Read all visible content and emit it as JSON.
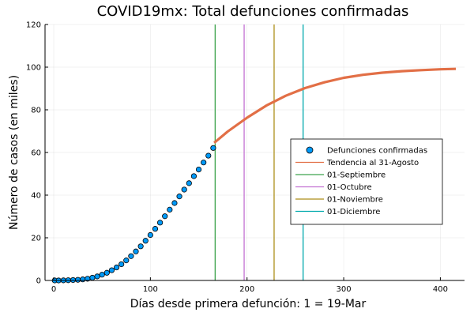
{
  "chart_data": {
    "type": "line",
    "title": "COVID19mx: Total defunciones confirmadas",
    "xlabel": "Días desde primera defunción: 1 = 19-Mar",
    "ylabel": "Número de casos (en miles)",
    "xlim": [
      -9,
      425
    ],
    "ylim": [
      0,
      120
    ],
    "xticks": [
      0,
      100,
      200,
      300,
      400
    ],
    "yticks": [
      0,
      20,
      40,
      60,
      80,
      100,
      120
    ],
    "grid": true,
    "legend_position": "right",
    "colors": {
      "scatter_fill": "#009af9",
      "scatter_stroke": "#000000",
      "trend": "#e26f46",
      "vline_sep": "#3da44d",
      "vline_oct": "#c271d2",
      "vline_nov": "#ac8e18",
      "vline_dec": "#00a9ad"
    },
    "series": [
      {
        "name": "Defunciones confirmadas",
        "kind": "scatter",
        "x": [
          1,
          5,
          10,
          15,
          20,
          25,
          30,
          35,
          40,
          45,
          50,
          55,
          60,
          65,
          70,
          75,
          80,
          85,
          90,
          95,
          100,
          105,
          110,
          115,
          120,
          125,
          130,
          135,
          140,
          145,
          150,
          155,
          160,
          165
        ],
        "y": [
          0.0,
          0.0,
          0.05,
          0.1,
          0.2,
          0.3,
          0.5,
          0.8,
          1.3,
          1.9,
          2.7,
          3.6,
          4.8,
          6.1,
          7.6,
          9.4,
          11.4,
          13.6,
          16.0,
          18.6,
          21.3,
          24.2,
          27.1,
          30.1,
          33.2,
          36.3,
          39.4,
          42.6,
          45.6,
          48.9,
          52.0,
          55.3,
          58.5,
          62.1
        ]
      },
      {
        "name": "Tendencia al 31-Agosto",
        "kind": "line",
        "x": [
          166,
          180,
          200,
          220,
          240,
          260,
          280,
          300,
          320,
          340,
          360,
          380,
          400,
          416
        ],
        "y": [
          64.5,
          69.8,
          76.3,
          82.0,
          86.6,
          90.2,
          92.9,
          95.0,
          96.4,
          97.4,
          98.1,
          98.6,
          99.0,
          99.2
        ]
      }
    ],
    "vlines": [
      {
        "name": "01-Septiembre",
        "x": 167
      },
      {
        "name": "01-Octubre",
        "x": 197
      },
      {
        "name": "01-Noviembre",
        "x": 228
      },
      {
        "name": "01-Diciembre",
        "x": 258
      }
    ]
  }
}
